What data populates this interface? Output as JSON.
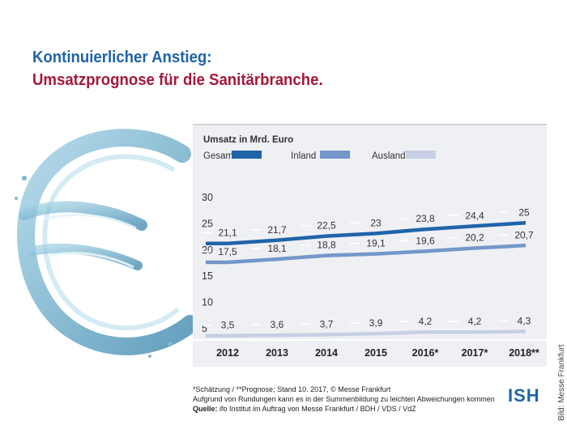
{
  "titles": {
    "line1": "Kontinuierlicher Anstieg:",
    "line2": "Umsatzprognose für die Sanitärbranche."
  },
  "colors": {
    "title_blue": "#1f64a8",
    "title_red": "#a6183c",
    "panel_bg": "#eef0f3"
  },
  "chart_data": {
    "type": "line",
    "title": "Umsatz in Mrd. Euro",
    "categories": [
      "2012",
      "2013",
      "2014",
      "2015",
      "2016*",
      "2017*",
      "2018**"
    ],
    "yticks": [
      "30",
      "25",
      "20",
      "15",
      "10",
      "5"
    ],
    "ylim": [
      5,
      30
    ],
    "grid": false,
    "legend_position": "top",
    "series": [
      {
        "name": "Gesamt",
        "color": "#1f64a8",
        "values": [
          21.1,
          21.7,
          22.5,
          23,
          23.8,
          24.4,
          25
        ],
        "labels": [
          "21,1",
          "21,7",
          "22,5",
          "23",
          "23,8",
          "24,4",
          "25"
        ]
      },
      {
        "name": "Inland",
        "color": "#7497c9",
        "values": [
          17.5,
          18.1,
          18.8,
          19.1,
          19.6,
          20.2,
          20.7
        ],
        "labels": [
          "17,5",
          "18,1",
          "18,8",
          "19,1",
          "19,6",
          "20,2",
          "20,7"
        ]
      },
      {
        "name": "Ausland",
        "color": "#c6cfe3",
        "values": [
          3.5,
          3.6,
          3.7,
          3.9,
          4.2,
          4.2,
          4.3
        ],
        "labels": [
          "3,5",
          "3,6",
          "3,7",
          "3,9",
          "4,2",
          "4,2",
          "4,3"
        ]
      }
    ]
  },
  "footnotes": {
    "line1": "*Schätzung / **Prognose; Stand 10. 2017, © Messe Frankfurt",
    "line2": "Aufgrund von Rundungen kann es in der Summenbildung zu leichten Abweichungen kommen",
    "source_label": "Quelle:",
    "source_text": "ifo Institut im Auftrag von Messe Frankfurt / BDH / VDS / VdZ"
  },
  "brand": {
    "logo": "ISH"
  },
  "credit": "Bild: Messe Frankfurt"
}
